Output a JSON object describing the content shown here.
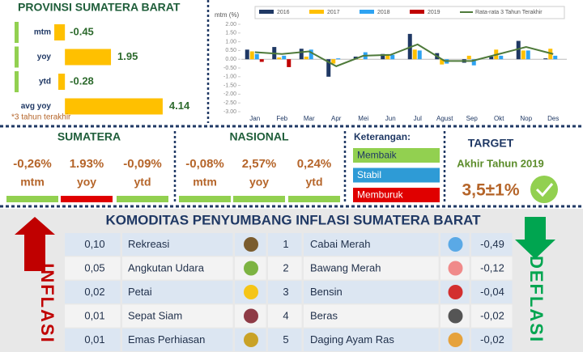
{
  "chart_data": [
    {
      "type": "hbar",
      "title": "PROVINSI SUMATERA BARAT",
      "categories": [
        "mtm",
        "yoy",
        "ytd",
        "avg yoy"
      ],
      "values": [
        -0.45,
        1.95,
        -0.28,
        4.14
      ],
      "color": "#ffc000",
      "xlim": [
        -1,
        5
      ],
      "note": "*3 tahun terakhir"
    },
    {
      "type": "bar",
      "y_label": "mtm (%)",
      "categories": [
        "Jan",
        "Feb",
        "Mar",
        "Apr",
        "Mei",
        "Jun",
        "Jul",
        "Agust",
        "Sep",
        "Okt",
        "Nop",
        "Des"
      ],
      "ylim": [
        -3,
        2
      ],
      "yticks": [
        {
          "value": 2,
          "label": "2.00"
        },
        {
          "value": 1.5,
          "label": "1.50"
        },
        {
          "value": 1,
          "label": "1.00"
        },
        {
          "value": 0.5,
          "label": "0.50"
        },
        {
          "value": 0,
          "label": "0.00"
        },
        {
          "value": -0.5,
          "label": "-0.50"
        },
        {
          "value": -1,
          "label": "-1.00"
        },
        {
          "value": -1.5,
          "label": "-1.50"
        },
        {
          "value": -2,
          "label": "-2.00"
        },
        {
          "value": -2.5,
          "label": "-2.50"
        },
        {
          "value": -3,
          "label": "-3.00"
        }
      ],
      "series": [
        {
          "name": "2016",
          "color": "#1f3864",
          "values": [
            0.55,
            0.7,
            0.6,
            -1.0,
            0.15,
            0.3,
            1.45,
            0.35,
            -0.2,
            0.15,
            1.05,
            0.05
          ]
        },
        {
          "name": "2017",
          "color": "#ffc000",
          "values": [
            0.45,
            0.1,
            0.15,
            -0.25,
            0.0,
            0.25,
            0.55,
            -0.3,
            0.2,
            0.55,
            0.5,
            0.6
          ]
        },
        {
          "name": "2018",
          "color": "#2ea3f2",
          "values": [
            0.3,
            0.2,
            0.55,
            0.05,
            0.4,
            0.25,
            0.5,
            -0.25,
            -0.35,
            0.2,
            0.5,
            0.2
          ]
        },
        {
          "name": "2019",
          "color": "#c00000",
          "values": [
            -0.15,
            -0.45,
            null,
            null,
            null,
            null,
            null,
            null,
            null,
            null,
            null,
            null
          ]
        },
        {
          "name": "Rata-rata 3 Tahun Terakhir",
          "type": "line",
          "color": "#4e7a3a",
          "values": [
            0.4,
            0.3,
            0.45,
            -0.4,
            0.2,
            0.25,
            0.85,
            -0.1,
            -0.1,
            0.3,
            0.7,
            0.3
          ]
        }
      ]
    }
  ],
  "sumatera": {
    "title": "SUMATERA",
    "items": [
      {
        "value": "-0,26%",
        "label": "mtm",
        "color": "#92d050"
      },
      {
        "value": "1.93%",
        "label": "yoy",
        "color": "#e00000"
      },
      {
        "value": "-0,09%",
        "label": "ytd",
        "color": "#92d050"
      }
    ]
  },
  "nasional": {
    "title": "NASIONAL",
    "items": [
      {
        "value": "-0,08%",
        "label": "mtm",
        "color": "#92d050"
      },
      {
        "value": "2,57%",
        "label": "yoy",
        "color": "#92d050"
      },
      {
        "value": "0,24%",
        "label": "ytd",
        "color": "#92d050"
      }
    ]
  },
  "keterangan": {
    "title": "Keterangan:",
    "items": [
      {
        "label": "Membaik",
        "color": "#92d050",
        "text_color": "#1f3864"
      },
      {
        "label": "Stabil",
        "color": "#2e9bd6",
        "text_color": "#ffffff"
      },
      {
        "label": "Memburuk",
        "color": "#e00000",
        "text_color": "#ffffff"
      }
    ]
  },
  "target": {
    "title": "TARGET",
    "subtitle": "Akhir Tahun 2019",
    "value": "3,5±1%"
  },
  "commodities": {
    "title": "KOMODITAS PENYUMBANG INFLASI SUMATERA BARAT",
    "inflasi_label": "INFLASI",
    "deflasi_label": "DEFLASI",
    "rows": [
      [
        "0,10",
        "Rekreasi",
        "1",
        "Cabai Merah",
        "-0,49"
      ],
      [
        "0,05",
        "Angkutan Udara",
        "2",
        "Bawang Merah",
        "-0,12"
      ],
      [
        "0,02",
        "Petai",
        "3",
        "Bensin",
        "-0,04"
      ],
      [
        "0,01",
        "Sepat Siam",
        "4",
        "Beras",
        "-0,02"
      ],
      [
        "0,01",
        "Emas Perhiasan",
        "5",
        "Daging Ayam Ras",
        "-0,02"
      ]
    ]
  }
}
